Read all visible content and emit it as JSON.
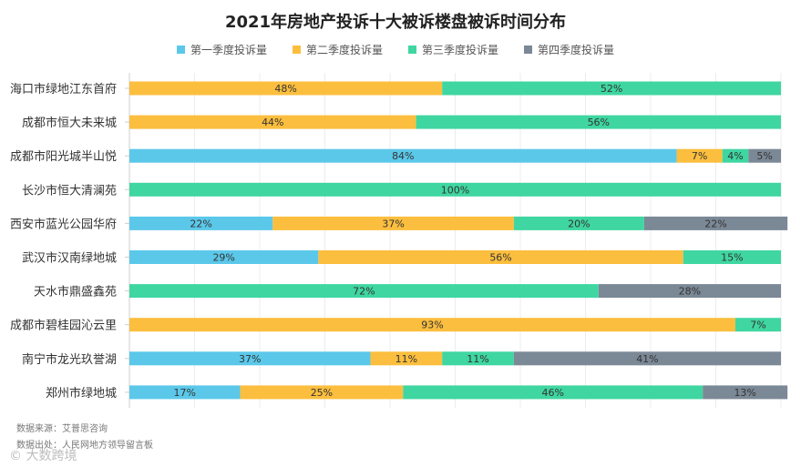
{
  "chart_data": {
    "type": "bar",
    "orientation": "horizontal",
    "stacked": true,
    "title": "2021年房地产投诉十大被诉楼盘被诉时间分布",
    "categories": [
      "海口市绿地江东首府",
      "成都市恒大未来城",
      "成都市阳光城半山悦",
      "长沙市恒大清澜苑",
      "西安市蓝光公园华府",
      "武汉市汉南绿地城",
      "天水市鼎盛鑫苑",
      "成都市碧桂园沁云里",
      "南宁市龙光玖誉湖",
      "郑州市绿地城"
    ],
    "series": [
      {
        "name": "第一季度投诉量",
        "color": "#5bc8ea",
        "values": [
          0,
          0,
          84,
          0,
          22,
          29,
          0,
          0,
          37,
          17
        ]
      },
      {
        "name": "第二季度投诉量",
        "color": "#fbbe3e",
        "values": [
          48,
          44,
          7,
          0,
          37,
          56,
          0,
          93,
          11,
          25
        ]
      },
      {
        "name": "第三季度投诉量",
        "color": "#3fd6a1",
        "values": [
          52,
          56,
          4,
          100,
          20,
          15,
          72,
          7,
          11,
          46
        ]
      },
      {
        "name": "第四季度投诉量",
        "color": "#7b8896",
        "values": [
          0,
          0,
          5,
          0,
          22,
          0,
          28,
          0,
          41,
          13
        ]
      }
    ],
    "xlim": [
      0,
      100
    ],
    "legend_position": "top-center",
    "grid": "vertical"
  },
  "footer": {
    "source": "数据来源：艾普思咨询",
    "data_origin": "数据出处：人民网地方领导留言板",
    "watermark": "© 大数跨境"
  }
}
